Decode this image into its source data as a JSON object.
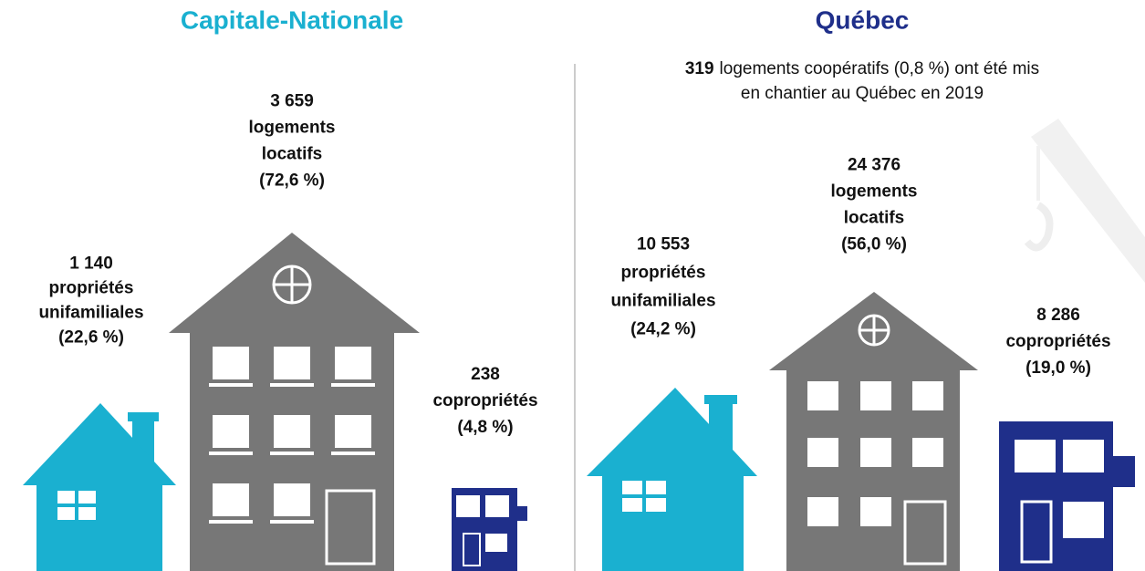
{
  "panels": [
    {
      "title": "Capitale-Nationale",
      "callouts": [
        {
          "lines": [
            "1 140",
            "propriétés",
            "unifamiliales",
            "(22,6 %)"
          ]
        },
        {
          "lines": [
            "3 659",
            "logements",
            "locatifs",
            "(72,6 %)"
          ]
        },
        {
          "lines": [
            "238",
            "copropriétés",
            "(4,8 %)"
          ]
        }
      ]
    },
    {
      "title": "Québec",
      "note": {
        "number": "319",
        "lines": [
          "logements coopératifs (0,8 %) ont été mis",
          "en chantier au Québec en 2019"
        ]
      },
      "callouts": [
        {
          "lines": [
            "10 553",
            "propriétés",
            "unifamiliales",
            "(24,2 %)"
          ]
        },
        {
          "lines": [
            "24 376",
            "logements",
            "locatifs",
            "(56,0 %)"
          ]
        },
        {
          "lines": [
            "8 286",
            "copropriétés",
            "(19,0 %)"
          ]
        }
      ]
    }
  ]
}
